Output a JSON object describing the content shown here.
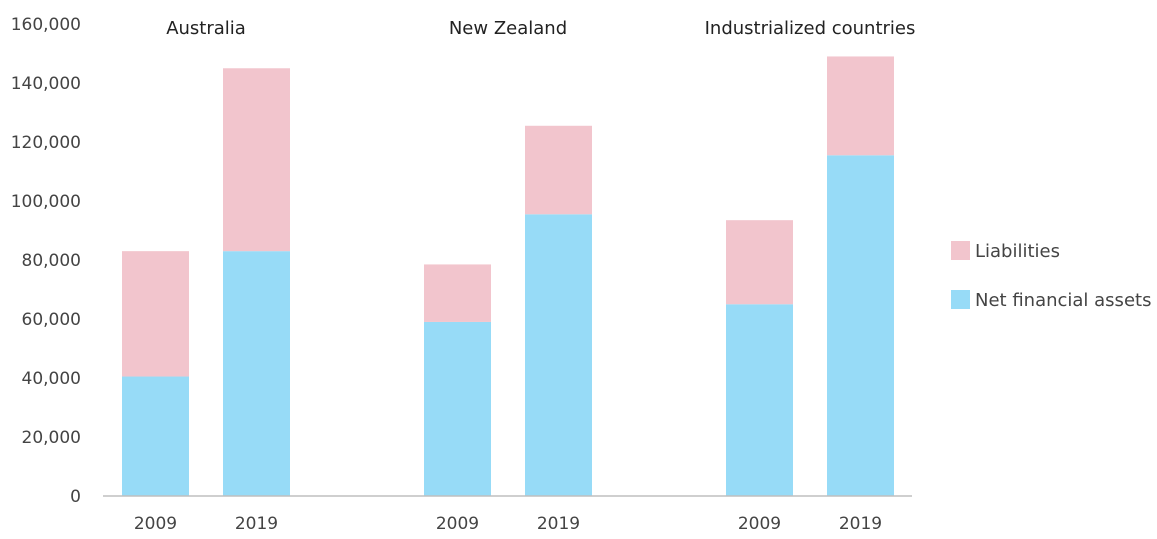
{
  "chart_data": {
    "type": "bar",
    "stacked": true,
    "groups": [
      {
        "title": "Australia",
        "categories": [
          "2009",
          "2019"
        ]
      },
      {
        "title": "New Zealand",
        "categories": [
          "2009",
          "2019"
        ]
      },
      {
        "title": "Industrialized countries",
        "categories": [
          "2009",
          "2019"
        ]
      }
    ],
    "series": [
      {
        "name": "Net financial assets",
        "color": "#97dbf7",
        "values": [
          [
            40500,
            83000
          ],
          [
            59000,
            95500
          ],
          [
            65000,
            115500
          ]
        ]
      },
      {
        "name": "Liabilities",
        "color": "#f2c5cd",
        "values": [
          [
            42500,
            62000
          ],
          [
            19500,
            30000
          ],
          [
            28500,
            33500
          ]
        ]
      }
    ],
    "ylim": [
      0,
      160000
    ],
    "yticks": [
      "0",
      "20,000",
      "40,000",
      "60,000",
      "80,000",
      "100,000",
      "120,000",
      "140,000",
      "160,000"
    ],
    "legend": [
      "Liabilities",
      "Net financial assets"
    ],
    "legend_position": "right",
    "grid": false
  }
}
